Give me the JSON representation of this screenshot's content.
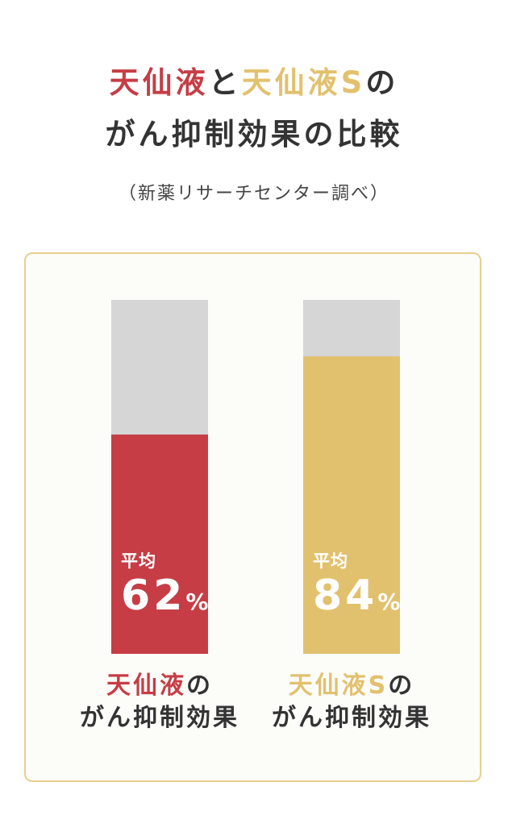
{
  "header": {
    "line1": {
      "part1": "天仙液",
      "part2": "と",
      "part3": "天仙液S",
      "part4": "の"
    },
    "line2": "がん抑制効果の比較",
    "source": "（新薬リサーチセンター調べ）"
  },
  "colors": {
    "red": "#c63d45",
    "gold": "#e2c16e",
    "track": "#d6d6d7",
    "border": "#e7cf8e"
  },
  "chart_data": {
    "type": "bar",
    "categories": [
      "天仙液のがん抑制効果",
      "天仙液Sのがん抑制効果"
    ],
    "values": [
      62,
      84
    ],
    "unit": "%",
    "ylim": [
      0,
      100
    ]
  },
  "bars": [
    {
      "avg_label": "平均",
      "value_text": "62",
      "unit": "%",
      "cap_name": "天仙液",
      "cap_no": "の",
      "cap_line2": "がん抑制効果"
    },
    {
      "avg_label": "平均",
      "value_text": "84",
      "unit": "%",
      "cap_name": "天仙液S",
      "cap_no": "の",
      "cap_line2": "がん抑制効果"
    }
  ]
}
